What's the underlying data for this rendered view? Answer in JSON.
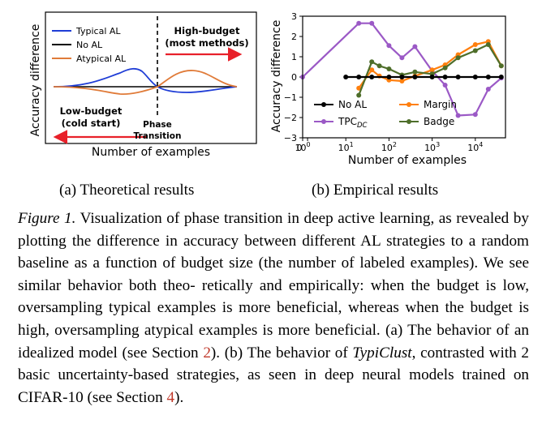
{
  "figure": {
    "panel_a": {
      "subcaption": "(a) Theoretical results",
      "ylabel": "Accuracy difference",
      "xlabel": "Number of examples",
      "legend": [
        {
          "label": "Typical AL",
          "color": "#1f3dd6"
        },
        {
          "label": "No AL",
          "color": "#000000"
        },
        {
          "label": "Atypical AL",
          "color": "#e07b39"
        }
      ],
      "annotations": {
        "high_budget_1": "High-budget",
        "high_budget_2": "(most methods)",
        "low_budget_1": "Low-budget",
        "low_budget_2": "(cold start)",
        "phase_1": "Phase",
        "phase_2": "Transition"
      },
      "arrow_color": "#e8202a"
    },
    "panel_b": {
      "subcaption": "(b) Empirical results",
      "ylabel": "Accuracy difference",
      "xlabel": "Number of examples",
      "xscale": "log",
      "xlim": [
        1,
        50000
      ],
      "ylim": [
        -3,
        3
      ],
      "yticks": [
        "3",
        "2",
        "1",
        "0",
        "−1",
        "−2",
        "−3"
      ],
      "xtick_labels": [
        {
          "base": "0",
          "exp": ""
        },
        {
          "base": "10",
          "exp": "0"
        },
        {
          "base": "10",
          "exp": "1"
        },
        {
          "base": "10",
          "exp": "2"
        },
        {
          "base": "10",
          "exp": "3"
        },
        {
          "base": "10",
          "exp": "4"
        }
      ],
      "legend_location": "lower-left",
      "legend": [
        {
          "label": "No AL",
          "sub": "",
          "color": "#000000",
          "marker": "circle"
        },
        {
          "label": "Margin",
          "sub": "",
          "color": "#ff7f0e",
          "marker": "circle"
        },
        {
          "label": "TPC",
          "sub": "DC",
          "color": "#9b59c6",
          "marker": "circle"
        },
        {
          "label": "Badge",
          "sub": "",
          "color": "#4e6e2a",
          "marker": "circle"
        }
      ]
    }
  },
  "chart_data": [
    {
      "type": "line",
      "xscale": "log",
      "xlim": [
        1,
        50000
      ],
      "ylim": [
        -3,
        3
      ],
      "ylabel": "Accuracy difference",
      "xlabel": "Number of examples",
      "series": [
        {
          "name": "No AL",
          "color": "#000000",
          "x": [
            10,
            20,
            40,
            100,
            200,
            400,
            1000,
            2000,
            4000,
            10000,
            20000,
            40000
          ],
          "y": [
            0,
            0,
            0,
            0,
            0,
            0,
            0,
            0,
            0,
            0,
            0,
            0
          ]
        },
        {
          "name": "TPCDC",
          "color": "#9b59c6",
          "x": [
            1,
            20,
            40,
            100,
            200,
            400,
            1000,
            2000,
            4000,
            10000,
            20000,
            40000
          ],
          "y": [
            0,
            2.65,
            2.65,
            1.55,
            0.95,
            1.5,
            0.3,
            -0.4,
            -1.9,
            -1.85,
            -0.6,
            -0.05
          ]
        },
        {
          "name": "Margin",
          "color": "#ff7f0e",
          "x": [
            20,
            40,
            60,
            100,
            200,
            400,
            1000,
            2000,
            4000,
            10000,
            20000,
            40000
          ],
          "y": [
            -0.55,
            0.35,
            0.05,
            -0.15,
            -0.2,
            0.05,
            0.35,
            0.6,
            1.1,
            1.6,
            1.75,
            0.55
          ]
        },
        {
          "name": "Badge",
          "color": "#4e6e2a",
          "x": [
            20,
            40,
            60,
            100,
            200,
            400,
            1000,
            2000,
            4000,
            10000,
            20000,
            40000
          ],
          "y": [
            -0.9,
            0.75,
            0.55,
            0.4,
            0.1,
            0.25,
            0.15,
            0.45,
            0.95,
            1.3,
            1.6,
            0.55
          ]
        }
      ]
    }
  ],
  "caption": {
    "fig_label": "Figure 1.",
    "line1": " Visualization of phase transition in deep active learning,",
    "line2": "as revealed by plotting the difference in accuracy between different",
    "line3": "AL strategies to a random baseline as a function of budget size (the",
    "line4": "number of labeled examples). We see similar behavior both theo-",
    "line5": "retically and empirically: when the budget is low, oversampling",
    "line6": "typical examples is more beneficial, whereas when the budget is",
    "line7": "high, oversampling atypical examples is more beneficial. (a) The",
    "line8a": "behavior of an idealized model (see Section ",
    "ref1": "2",
    "line8b": "). (b) The behavior of",
    "line9_method": "TypiClust",
    "line9b": ", contrasted with 2 basic uncertainty-based strategies, as",
    "line10a": "seen in deep neural models trained on CIFAR-10 (see Section ",
    "ref2": "4",
    "line10b": ")."
  }
}
